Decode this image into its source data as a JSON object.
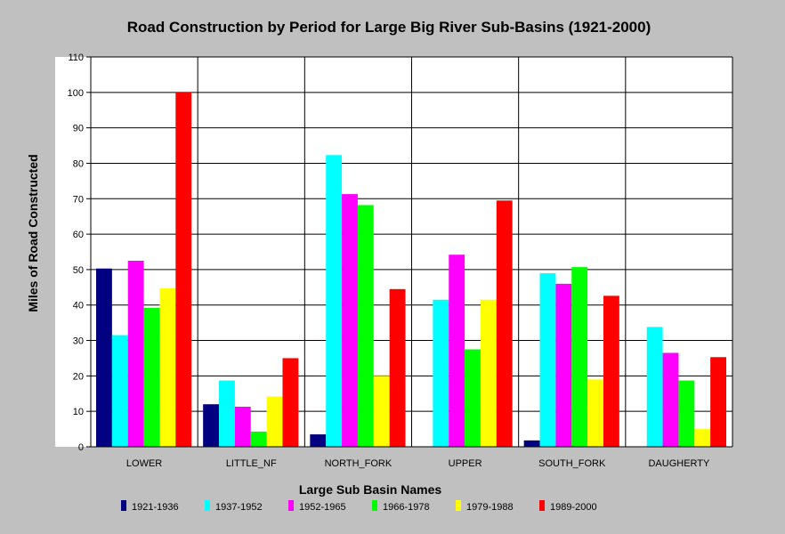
{
  "chart_data": {
    "type": "bar",
    "title": "Road Construction by Period for Large Big River Sub-Basins (1921-2000)",
    "xlabel": "Large Sub Basin Names",
    "ylabel": "Miles of Road Constructed",
    "ylim": [
      0,
      110
    ],
    "yticks": [
      "0",
      "10",
      "20",
      "30",
      "40",
      "50",
      "60",
      "70",
      "80",
      "90",
      "100",
      "110"
    ],
    "grid": true,
    "legend_position": "bottom",
    "categories": [
      "LOWER",
      "LITTLE_NF",
      "NORTH_FORK",
      "UPPER",
      "SOUTH_FORK",
      "DAUGHERTY"
    ],
    "series": [
      {
        "name": "1921-1936",
        "color": "#000080",
        "values": [
          50.3,
          12.0,
          3.5,
          0,
          1.8,
          0
        ]
      },
      {
        "name": "1937-1952",
        "color": "#00ffff",
        "values": [
          31.5,
          18.7,
          82.3,
          41.5,
          49.0,
          33.8
        ]
      },
      {
        "name": "1952-1965",
        "color": "#ff00ff",
        "values": [
          52.5,
          11.3,
          71.3,
          54.2,
          46.0,
          26.5
        ]
      },
      {
        "name": "1966-1978",
        "color": "#00ff00",
        "values": [
          39.2,
          4.3,
          68.2,
          27.5,
          50.7,
          18.7
        ]
      },
      {
        "name": "1979-1988",
        "color": "#ffff00",
        "values": [
          44.7,
          14.2,
          20.0,
          41.5,
          19.0,
          5.0
        ]
      },
      {
        "name": "1989-2000",
        "color": "#ff0000",
        "values": [
          100.0,
          25.0,
          44.5,
          69.5,
          42.6,
          25.3
        ]
      }
    ]
  }
}
